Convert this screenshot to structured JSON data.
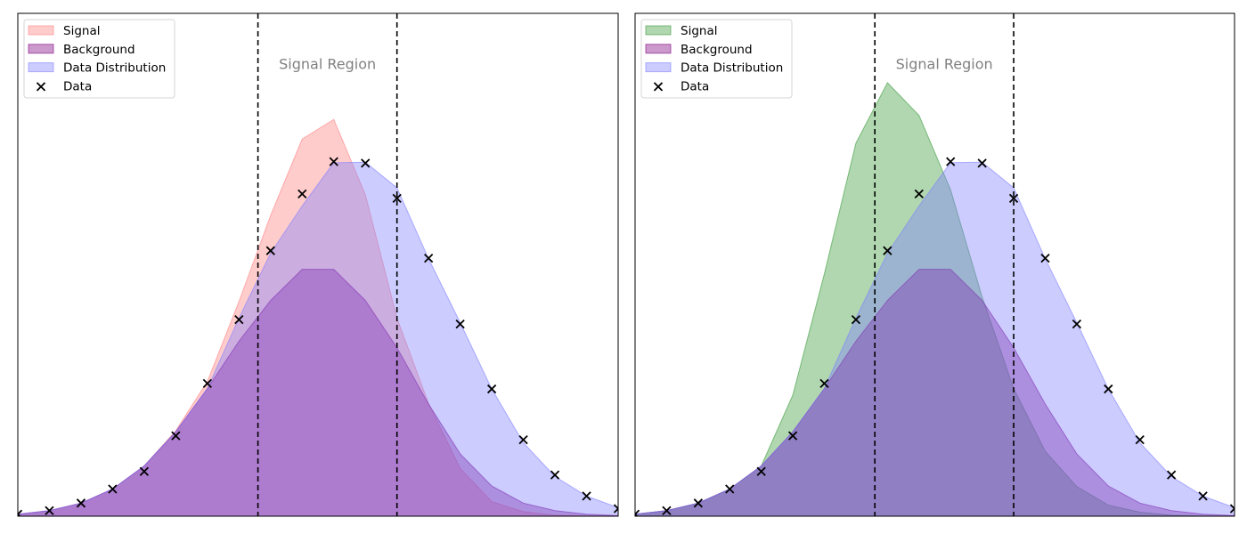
{
  "chart_data": [
    {
      "type": "area",
      "x": [
        0,
        1,
        2,
        3,
        4,
        5,
        6,
        7,
        8,
        9,
        10,
        11,
        12,
        13,
        14,
        15,
        16,
        17,
        18,
        19
      ],
      "xlim": [
        0,
        19
      ],
      "ylim": [
        0,
        1.0
      ],
      "annotation": "Signal Region",
      "signal_region": [
        7.6,
        12.0
      ],
      "legend_position": "upper-left",
      "grid": false,
      "series": [
        {
          "name": "Signal",
          "kind": "area",
          "color": "#ff8080",
          "values": [
            0.004,
            0.011,
            0.026,
            0.054,
            0.1,
            0.17,
            0.268,
            0.427,
            0.598,
            0.75,
            0.789,
            0.639,
            0.394,
            0.224,
            0.095,
            0.029,
            0.009,
            0.002,
            0.0005,
            0.0001
          ]
        },
        {
          "name": "Background",
          "kind": "area",
          "color": "#800080",
          "values": [
            0.004,
            0.011,
            0.026,
            0.054,
            0.1,
            0.168,
            0.254,
            0.348,
            0.429,
            0.491,
            0.491,
            0.429,
            0.335,
            0.223,
            0.124,
            0.06,
            0.026,
            0.011,
            0.004,
            0.001
          ]
        },
        {
          "name": "Data Distribution",
          "kind": "area",
          "color": "#8080ff",
          "values": [
            0.004,
            0.011,
            0.026,
            0.054,
            0.1,
            0.168,
            0.254,
            0.394,
            0.523,
            0.617,
            0.703,
            0.704,
            0.653,
            0.512,
            0.385,
            0.253,
            0.146,
            0.079,
            0.04,
            0.017
          ]
        },
        {
          "name": "Data",
          "kind": "scatter",
          "color": "#000000",
          "values": [
            0.004,
            0.011,
            0.026,
            0.054,
            0.089,
            0.16,
            0.264,
            0.391,
            0.528,
            0.641,
            0.705,
            0.702,
            0.632,
            0.513,
            0.382,
            0.253,
            0.152,
            0.082,
            0.04,
            0.015
          ]
        }
      ]
    },
    {
      "type": "area",
      "x": [
        0,
        1,
        2,
        3,
        4,
        5,
        6,
        7,
        8,
        9,
        10,
        11,
        12,
        13,
        14,
        15,
        16,
        17,
        18,
        19
      ],
      "xlim": [
        0,
        19
      ],
      "ylim": [
        0,
        1.0
      ],
      "annotation": "Signal Region",
      "signal_region": [
        7.6,
        12.0
      ],
      "legend_position": "upper-left",
      "grid": false,
      "series": [
        {
          "name": "Signal",
          "kind": "area",
          "color": "#3a9a3a",
          "values": [
            0.004,
            0.011,
            0.026,
            0.054,
            0.1,
            0.241,
            0.482,
            0.742,
            0.862,
            0.797,
            0.649,
            0.436,
            0.254,
            0.129,
            0.059,
            0.022,
            0.008,
            0.002,
            0.0005,
            0.0001
          ]
        },
        {
          "name": "Background",
          "kind": "area",
          "color": "#800080",
          "values": [
            0.004,
            0.011,
            0.026,
            0.054,
            0.1,
            0.168,
            0.254,
            0.348,
            0.429,
            0.491,
            0.491,
            0.429,
            0.335,
            0.223,
            0.124,
            0.06,
            0.026,
            0.011,
            0.004,
            0.001
          ]
        },
        {
          "name": "Data Distribution",
          "kind": "area",
          "color": "#8080ff",
          "values": [
            0.004,
            0.011,
            0.026,
            0.054,
            0.1,
            0.168,
            0.254,
            0.394,
            0.523,
            0.617,
            0.703,
            0.704,
            0.653,
            0.512,
            0.385,
            0.253,
            0.146,
            0.079,
            0.04,
            0.017
          ]
        },
        {
          "name": "Data",
          "kind": "scatter",
          "color": "#000000",
          "values": [
            0.004,
            0.011,
            0.026,
            0.054,
            0.089,
            0.16,
            0.264,
            0.391,
            0.528,
            0.641,
            0.705,
            0.702,
            0.632,
            0.513,
            0.382,
            0.253,
            0.152,
            0.082,
            0.04,
            0.015
          ]
        }
      ]
    }
  ]
}
